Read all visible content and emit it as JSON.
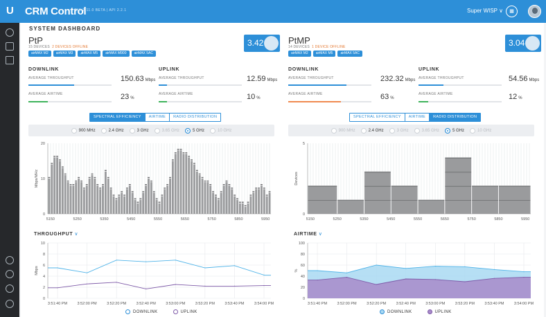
{
  "app": {
    "title": "CRM Control",
    "version": "GUI 2.11.0 BETA  |  API 2.2.1",
    "site": "Super WISP ∨",
    "apps_icon": "grid-icon"
  },
  "page": {
    "title": "SYSTEM DASHBOARD"
  },
  "sidebar": {
    "top": [
      "dashboard-icon",
      "signal-icon",
      "map-icon"
    ],
    "bottom": [
      "users-icon",
      "target-icon",
      "keys-icon",
      "info-icon"
    ]
  },
  "panels": [
    {
      "title": "PtP",
      "devices": "15 DEVICES",
      "offline": "2 DEVICES OFFLINE",
      "chips": [
        "airMAX M2",
        "airMAX M3",
        "airMAX M5",
        "airMAX M900",
        "airMAX 5AC"
      ],
      "score": "3.42",
      "downlink": {
        "heading": "DOWNLINK",
        "throughput_label": "AVERAGE THROUGHPUT",
        "throughput": "150.63",
        "throughput_unit": "Mbps",
        "throughput_level": 0.55,
        "airtime_label": "AVERAGE AIRTIME",
        "airtime": "23",
        "airtime_unit": "%",
        "airtime_level": 0.23,
        "airtime_color": "#3cb35a"
      },
      "uplink": {
        "heading": "UPLINK",
        "throughput_label": "AVERAGE THROUGHPUT",
        "throughput": "12.59",
        "throughput_unit": "Mbps",
        "throughput_level": 0.1,
        "airtime_label": "AVERAGE AIRTIME",
        "airtime": "10",
        "airtime_unit": "%",
        "airtime_level": 0.1,
        "airtime_color": "#3cb35a"
      },
      "tabs": [
        "SPECTRAL EFFICIENCY",
        "AIRTIME",
        "RADIO DISTRIBUTION"
      ],
      "active_tab": 0,
      "freqs": [
        {
          "label": "900 MHz",
          "state": "off"
        },
        {
          "label": "2.4 GHz",
          "state": "off"
        },
        {
          "label": "3 GHz",
          "state": "off"
        },
        {
          "label": "3.65 GHz",
          "state": "dis"
        },
        {
          "label": "5 GHz",
          "state": "on"
        },
        {
          "label": "10 GHz",
          "state": "dis"
        }
      ],
      "line_title": "THROUGHPUT",
      "legend": [
        "DOWNLINK",
        "UPLINK"
      ]
    },
    {
      "title": "PtMP",
      "devices": "14 DEVICES",
      "offline": "1 DEVICE OFFLINE",
      "chips": [
        "airMAX M2",
        "airMAX M5",
        "airMAX 5AC"
      ],
      "score": "3.04",
      "downlink": {
        "heading": "DOWNLINK",
        "throughput_label": "AVERAGE THROUGHPUT",
        "throughput": "232.32",
        "throughput_unit": "Mbps",
        "throughput_level": 0.7,
        "airtime_label": "AVERAGE AIRTIME",
        "airtime": "63",
        "airtime_unit": "%",
        "airtime_level": 0.63,
        "airtime_color": "#f0894f"
      },
      "uplink": {
        "heading": "UPLINK",
        "throughput_label": "AVERAGE THROUGHPUT",
        "throughput": "54.56",
        "throughput_unit": "Mbps",
        "throughput_level": 0.3,
        "airtime_label": "AVERAGE AIRTIME",
        "airtime": "12",
        "airtime_unit": "%",
        "airtime_level": 0.12,
        "airtime_color": "#3cb35a"
      },
      "tabs": [
        "SPECTRAL EFFICIENCY",
        "AIRTIME",
        "RADIO DISTRIBUTION"
      ],
      "active_tab": 2,
      "freqs": [
        {
          "label": "900 MHz",
          "state": "dis"
        },
        {
          "label": "2.4 GHz",
          "state": "off"
        },
        {
          "label": "3 GHz",
          "state": "dis"
        },
        {
          "label": "3.65 GHz",
          "state": "dis"
        },
        {
          "label": "5 GHz",
          "state": "on"
        },
        {
          "label": "10 GHz",
          "state": "dis"
        }
      ],
      "line_title": "AIRTIME",
      "legend": [
        "DOWNLINK",
        "UPLINK"
      ]
    }
  ],
  "colors": {
    "accent": "#2d8fd8",
    "bars": "#9a9b9d",
    "downlink": "#4fb3e8",
    "uplink": "#7e5aa8",
    "uplink_fill": "#a88bc9",
    "downlink_fill": "#a9d9f2"
  },
  "chart_data": [
    {
      "type": "bar",
      "ylabel": "Mbps/MHz",
      "ylim": [
        0,
        20
      ],
      "yticks": [
        0,
        10,
        20
      ],
      "xticks": [
        5150,
        5250,
        5350,
        5450,
        5550,
        5650,
        5750,
        5850,
        5950
      ],
      "x": [
        5140,
        5150,
        5160,
        5170,
        5180,
        5190,
        5200,
        5210,
        5220,
        5230,
        5240,
        5250,
        5260,
        5270,
        5280,
        5290,
        5300,
        5310,
        5320,
        5330,
        5340,
        5350,
        5360,
        5370,
        5380,
        5390,
        5400,
        5410,
        5420,
        5430,
        5440,
        5450,
        5460,
        5470,
        5480,
        5490,
        5500,
        5510,
        5520,
        5530,
        5540,
        5550,
        5560,
        5570,
        5580,
        5590,
        5600,
        5610,
        5620,
        5630,
        5640,
        5650,
        5660,
        5670,
        5680,
        5690,
        5700,
        5710,
        5720,
        5730,
        5740,
        5750,
        5760,
        5770,
        5780,
        5790,
        5800,
        5810,
        5820,
        5830,
        5840,
        5850,
        5860,
        5870,
        5880,
        5890,
        5900,
        5910,
        5920,
        5930,
        5940,
        5950,
        5960
      ],
      "values": [
        10,
        14,
        16,
        16,
        15,
        13,
        11,
        9,
        8,
        8,
        9,
        10,
        9,
        7,
        8,
        10,
        11,
        10,
        8,
        7,
        8,
        12,
        10,
        7,
        5,
        4,
        5,
        6,
        5,
        7,
        8,
        6,
        4,
        3,
        4,
        6,
        8,
        10,
        9,
        6,
        4,
        3,
        5,
        7,
        8,
        10,
        15,
        17,
        18,
        18,
        17,
        17,
        16,
        15,
        14,
        12,
        11,
        10,
        9,
        9,
        8,
        6,
        5,
        4,
        6,
        8,
        9,
        8,
        7,
        5,
        4,
        3,
        3,
        2,
        3,
        5,
        6,
        7,
        7,
        8,
        7,
        5,
        6
      ]
    },
    {
      "type": "bar",
      "ylabel": "Devices",
      "ylim": [
        0,
        5
      ],
      "yticks": [
        0,
        5
      ],
      "xticks": [
        5150,
        5250,
        5350,
        5450,
        5550,
        5650,
        5750,
        5850,
        5950
      ],
      "x": [
        5140,
        5250,
        5350,
        5450,
        5550,
        5650,
        5750,
        5850
      ],
      "values": [
        2,
        1,
        3,
        2,
        1,
        4,
        2,
        2
      ]
    },
    {
      "type": "line",
      "ylabel": "Mbps",
      "ylim": [
        0,
        10
      ],
      "yticks": [
        0,
        2,
        4,
        6,
        8,
        10
      ],
      "categories": [
        "3:51:40 PM",
        "3:52:00 PM",
        "3:52:20 PM",
        "3:52:40 PM",
        "3:53:00 PM",
        "3:53:20 PM",
        "3:53:40 PM",
        "3:54:00 PM"
      ],
      "series": [
        {
          "name": "DOWNLINK",
          "values": [
            5.5,
            4.6,
            6.9,
            6.6,
            6.9,
            5.5,
            5.9,
            4.2
          ]
        },
        {
          "name": "UPLINK",
          "values": [
            1.9,
            2.6,
            2.9,
            1.7,
            2.5,
            2.2,
            2.2,
            2.3
          ]
        }
      ]
    },
    {
      "type": "area",
      "ylabel": "%",
      "ylim": [
        0,
        100
      ],
      "yticks": [
        0,
        20,
        40,
        60,
        80,
        100
      ],
      "categories": [
        "3:51:40 PM",
        "3:52:00 PM",
        "3:52:20 PM",
        "3:52:40 PM",
        "3:53:00 PM",
        "3:53:20 PM",
        "3:53:40 PM",
        "3:54:00 PM"
      ],
      "series": [
        {
          "name": "DOWNLINK",
          "values": [
            50,
            46,
            60,
            54,
            58,
            57,
            52,
            48
          ]
        },
        {
          "name": "UPLINK",
          "values": [
            33,
            38,
            25,
            35,
            34,
            30,
            36,
            38
          ]
        }
      ]
    }
  ]
}
